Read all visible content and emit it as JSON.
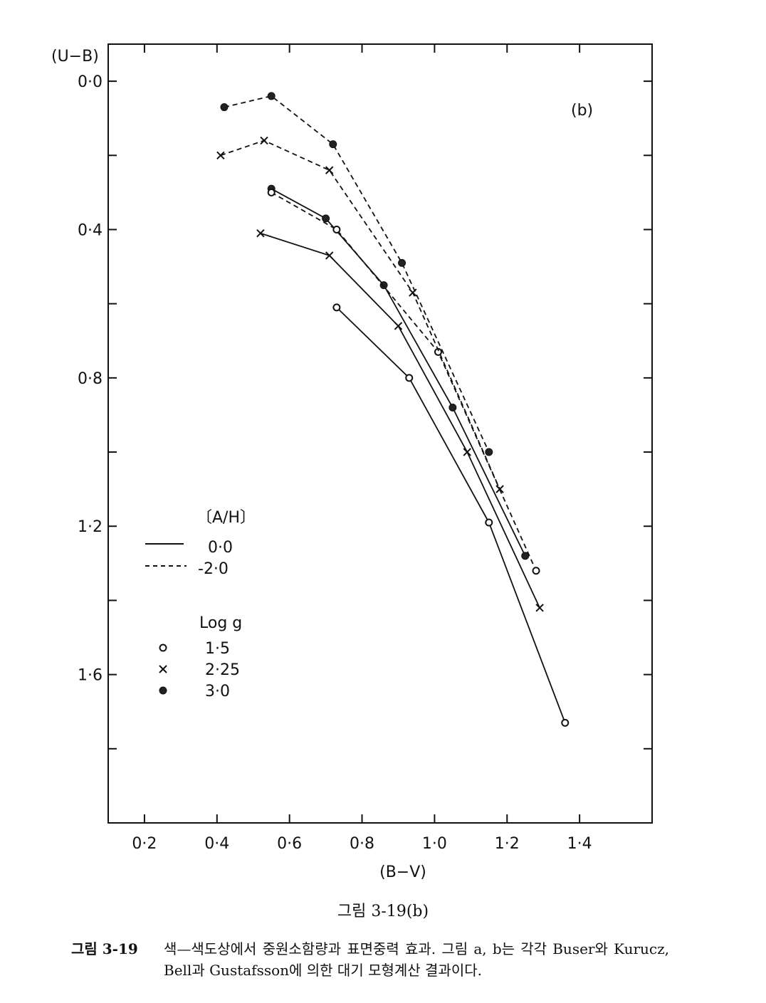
{
  "chart_data": {
    "type": "line",
    "xlabel": "(B−V)",
    "ylabel": "(U−B)",
    "panel_label": "(b)",
    "xlim": [
      0.1,
      1.6
    ],
    "ylim": [
      2.0,
      -0.1
    ],
    "y_inverted": true,
    "x_ticks": [
      0.2,
      0.4,
      0.6,
      0.8,
      1.0,
      1.2,
      1.4
    ],
    "x_tick_labels": [
      "0·2",
      "0·4",
      "0·6",
      "0·8",
      "1·0",
      "1·2",
      "1·4"
    ],
    "y_ticks": [
      0.0,
      0.4,
      0.8,
      1.2,
      1.6
    ],
    "y_tick_labels": [
      "0·0",
      "0·4",
      "0·8",
      "1·2",
      "1·6"
    ],
    "y_minor_ticks": [
      0.2,
      0.6,
      1.0,
      1.4,
      1.8
    ],
    "series": [
      {
        "metallicity": "0·0",
        "log_g": "1·5",
        "marker": "open-circle",
        "style": "solid",
        "points": [
          [
            0.73,
            0.61
          ],
          [
            0.93,
            0.8
          ],
          [
            1.15,
            1.19
          ],
          [
            1.36,
            1.73
          ]
        ]
      },
      {
        "metallicity": "0·0",
        "log_g": "2·25",
        "marker": "cross",
        "style": "solid",
        "points": [
          [
            0.52,
            0.41
          ],
          [
            0.71,
            0.47
          ],
          [
            0.9,
            0.66
          ],
          [
            1.09,
            1.0
          ],
          [
            1.29,
            1.42
          ]
        ]
      },
      {
        "metallicity": "0·0",
        "log_g": "3·0",
        "marker": "filled-circle",
        "style": "solid",
        "points": [
          [
            0.55,
            0.29
          ],
          [
            0.7,
            0.37
          ],
          [
            0.86,
            0.55
          ],
          [
            1.05,
            0.88
          ],
          [
            1.25,
            1.28
          ]
        ]
      },
      {
        "metallicity": "-2·0",
        "log_g": "1·5",
        "marker": "open-circle",
        "style": "dashed",
        "points": [
          [
            0.55,
            0.3
          ],
          [
            0.73,
            0.4
          ],
          [
            1.01,
            0.73
          ],
          [
            1.28,
            1.32
          ]
        ]
      },
      {
        "metallicity": "-2·0",
        "log_g": "2·25",
        "marker": "cross",
        "style": "dashed",
        "points": [
          [
            0.41,
            0.2
          ],
          [
            0.53,
            0.16
          ],
          [
            0.71,
            0.24
          ],
          [
            0.94,
            0.57
          ],
          [
            1.18,
            1.1
          ]
        ]
      },
      {
        "metallicity": "-2·0",
        "log_g": "3·0",
        "marker": "filled-circle",
        "style": "dashed",
        "points": [
          [
            0.42,
            0.07
          ],
          [
            0.55,
            0.04
          ],
          [
            0.72,
            0.17
          ],
          [
            0.91,
            0.49
          ],
          [
            1.15,
            1.0
          ]
        ]
      }
    ],
    "legend": {
      "metallicity_title": "〔A/H〕",
      "metallicity_entries": [
        {
          "label": "0·0",
          "style": "solid"
        },
        {
          "label": "-2·0",
          "style": "dashed"
        }
      ],
      "gravity_title": "Log g",
      "gravity_entries": [
        {
          "label": "1·5",
          "marker": "open-circle"
        },
        {
          "label": "2·25",
          "marker": "cross"
        },
        {
          "label": "3·0",
          "marker": "filled-circle"
        }
      ]
    }
  },
  "figure_label": "그림 3-19(b)",
  "caption": {
    "number": "그림 3-19",
    "text": "색—색도상에서 중원소함량과 표면중력 효과. 그림 a, b는 각각 Buser와 Kurucz, Bell과 Gustafsson에 의한 대기 모형계산 결과이다."
  },
  "colors": {
    "ink": "#111111",
    "background": "#ffffff"
  }
}
